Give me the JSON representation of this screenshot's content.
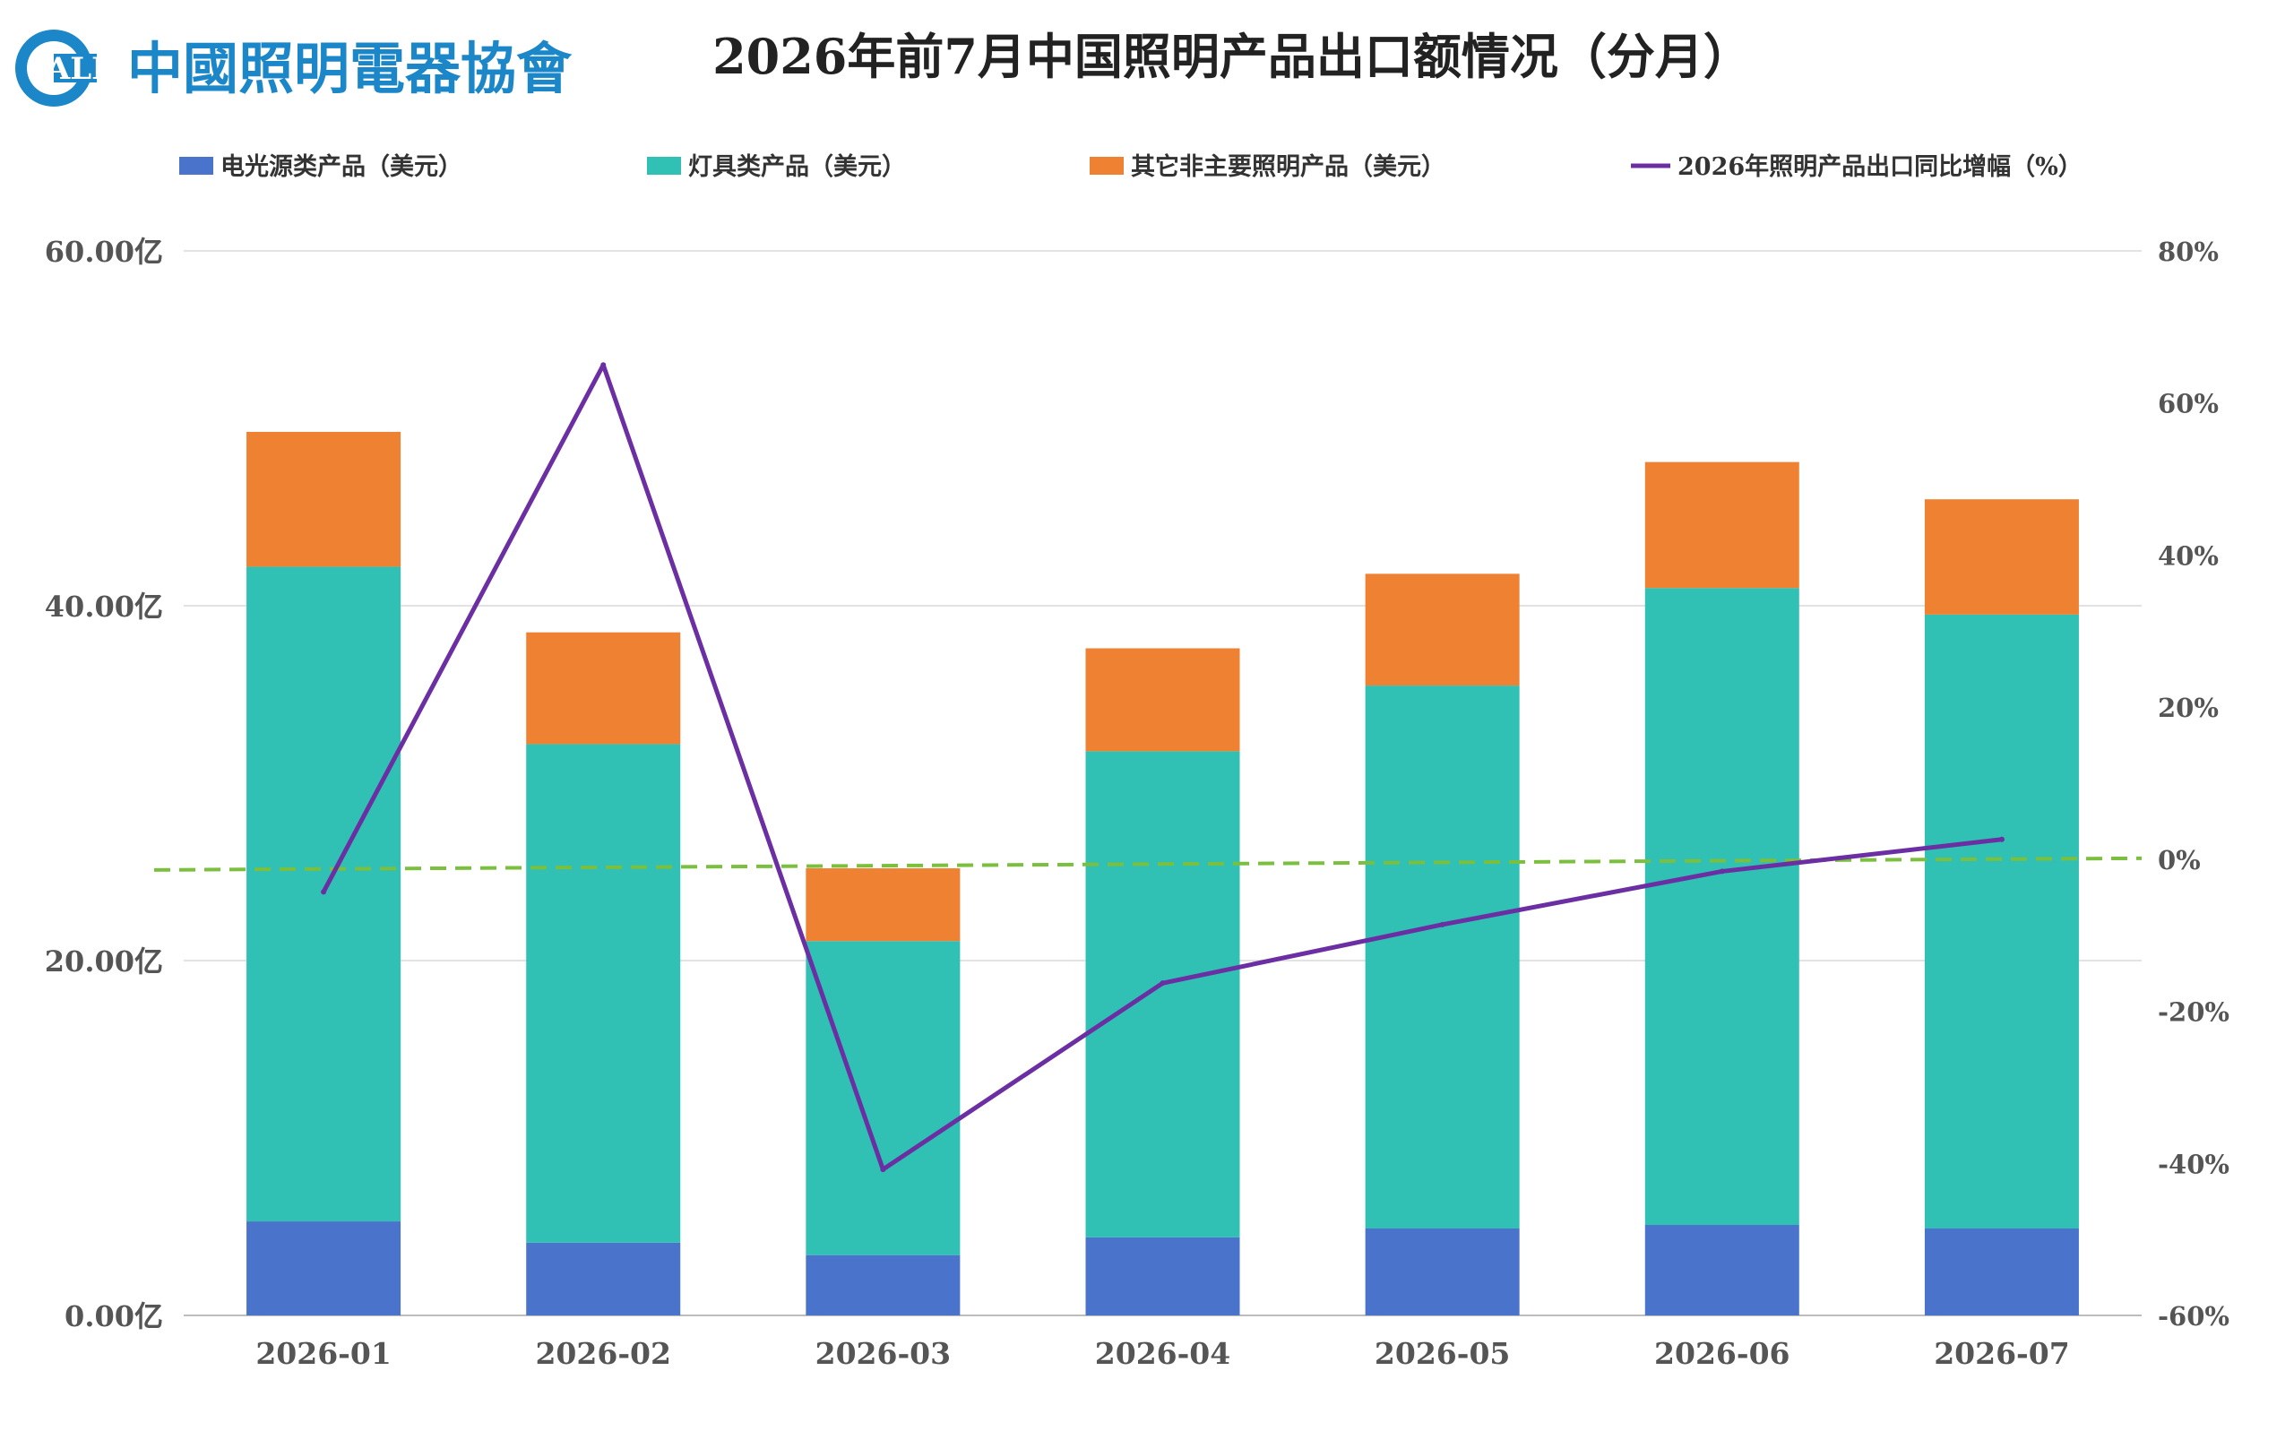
{
  "header": {
    "logo_badge": "ALI",
    "logo_text": "中國照明電器協會",
    "title": "2026年前7月中国照明产品出口额情况（分月）"
  },
  "colors": {
    "light_source": "#4a73cc",
    "luminaire": "#30c0b4",
    "other": "#ee8232",
    "growth_line": "#6b2fa3",
    "zero_line": "#7bbf3e",
    "logo_blue": "#1b87c9"
  },
  "chart_data": {
    "type": "bar",
    "stacked": true,
    "title": "2026年前7月中国照明产品出口额情况（分月）",
    "categories": [
      "2026-01",
      "2026-02",
      "2026-03",
      "2026-04",
      "2026-05",
      "2026-06",
      "2026-07"
    ],
    "series": [
      {
        "name": "电光源类产品（美元）",
        "axis": "left",
        "color_key": "light_source",
        "values": [
          5.3,
          4.1,
          3.4,
          4.4,
          4.9,
          5.1,
          4.9
        ]
      },
      {
        "name": "灯具类产品（美元）",
        "axis": "left",
        "color_key": "luminaire",
        "values": [
          36.9,
          28.1,
          17.7,
          27.4,
          30.6,
          35.9,
          34.6
        ]
      },
      {
        "name": "其它非主要照明产品（美元）",
        "axis": "left",
        "color_key": "other",
        "values": [
          7.6,
          6.3,
          4.1,
          5.8,
          6.3,
          7.1,
          6.5
        ]
      },
      {
        "name": "2026年照明产品出口同比增幅（%）",
        "axis": "right",
        "type": "line",
        "color_key": "growth_line",
        "values": [
          -4.3,
          65.0,
          -40.8,
          -16.3,
          -8.6,
          -1.6,
          2.6
        ]
      }
    ],
    "left_axis": {
      "ylim": [
        0,
        60
      ],
      "ticks": [
        "0.00亿",
        "20.00亿",
        "40.00亿",
        "60.00亿"
      ],
      "tick_values": [
        0,
        20,
        40,
        60
      ]
    },
    "right_axis": {
      "ylim": [
        -60,
        80
      ],
      "ticks": [
        "-60%",
        "-40%",
        "-20%",
        "0%",
        "20%",
        "40%",
        "60%",
        "80%"
      ],
      "tick_values": [
        -60,
        -40,
        -20,
        0,
        20,
        40,
        60,
        80
      ]
    },
    "reference_line": {
      "axis": "right",
      "value": 0,
      "style": "dashed"
    },
    "grid": true,
    "legend_position": "top"
  }
}
